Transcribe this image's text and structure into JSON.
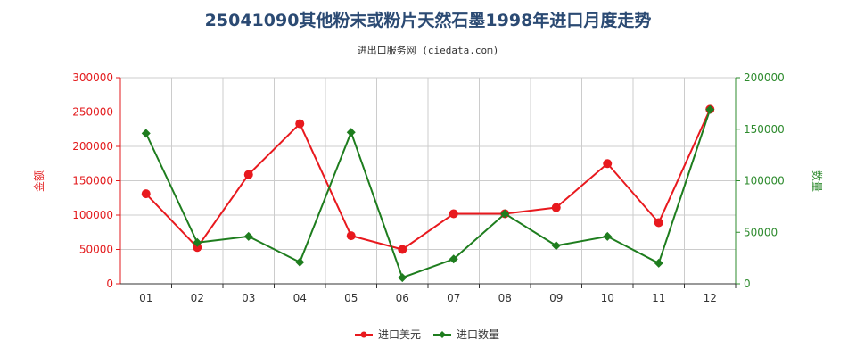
{
  "title": "25041090其他粉末或粉片天然石墨1998年进口月度走势",
  "subtitle": "进出口服务网 (ciedata.com)",
  "colors": {
    "left_axis": "#e31a1c",
    "right_axis": "#2e8b2e",
    "grid": "#cccccc"
  },
  "chart_data": {
    "type": "line",
    "categories": [
      "01",
      "02",
      "03",
      "04",
      "05",
      "06",
      "07",
      "08",
      "09",
      "10",
      "11",
      "12"
    ],
    "series": [
      {
        "name": "进口美元",
        "axis": "left",
        "color": "#e8191e",
        "values": [
          131000,
          53000,
          159000,
          233000,
          70000,
          50000,
          102000,
          102000,
          111000,
          175000,
          89000,
          254000
        ]
      },
      {
        "name": "进口数量",
        "axis": "right",
        "color": "#1e7d1e",
        "values": [
          146000,
          40000,
          46000,
          21000,
          147000,
          6000,
          24000,
          68000,
          37000,
          46000,
          20000,
          169000
        ]
      }
    ],
    "ylabel": "金额",
    "y2label": "数量",
    "ylim": [
      0,
      300000
    ],
    "y2lim": [
      0,
      200000
    ],
    "yticks": [
      "0",
      "50000",
      "100000",
      "150000",
      "200000",
      "250000",
      "300000"
    ],
    "y2ticks": [
      "0",
      "50000",
      "100000",
      "150000",
      "200000"
    ],
    "grid": true,
    "legend_position": "bottom"
  }
}
